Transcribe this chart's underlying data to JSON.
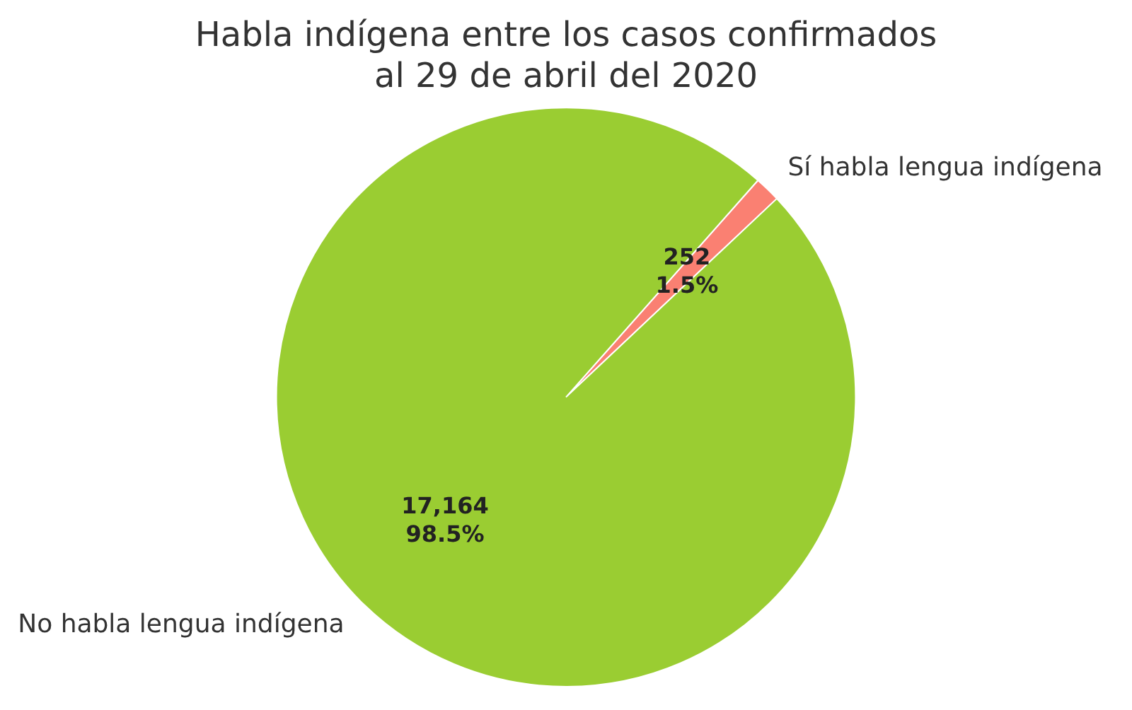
{
  "chart_data": {
    "type": "pie",
    "title": "Habla indígena entre los casos confirmados\nal 29 de abril del 2020",
    "categories": [
      "Sí habla lengua indígena",
      "No habla lengua indígena"
    ],
    "values": [
      252,
      17164
    ],
    "colors": [
      "#fa8072",
      "#9acd32"
    ],
    "value_labels": [
      "252\n1.5%",
      "17,164\n98.5%"
    ],
    "legend": false
  }
}
